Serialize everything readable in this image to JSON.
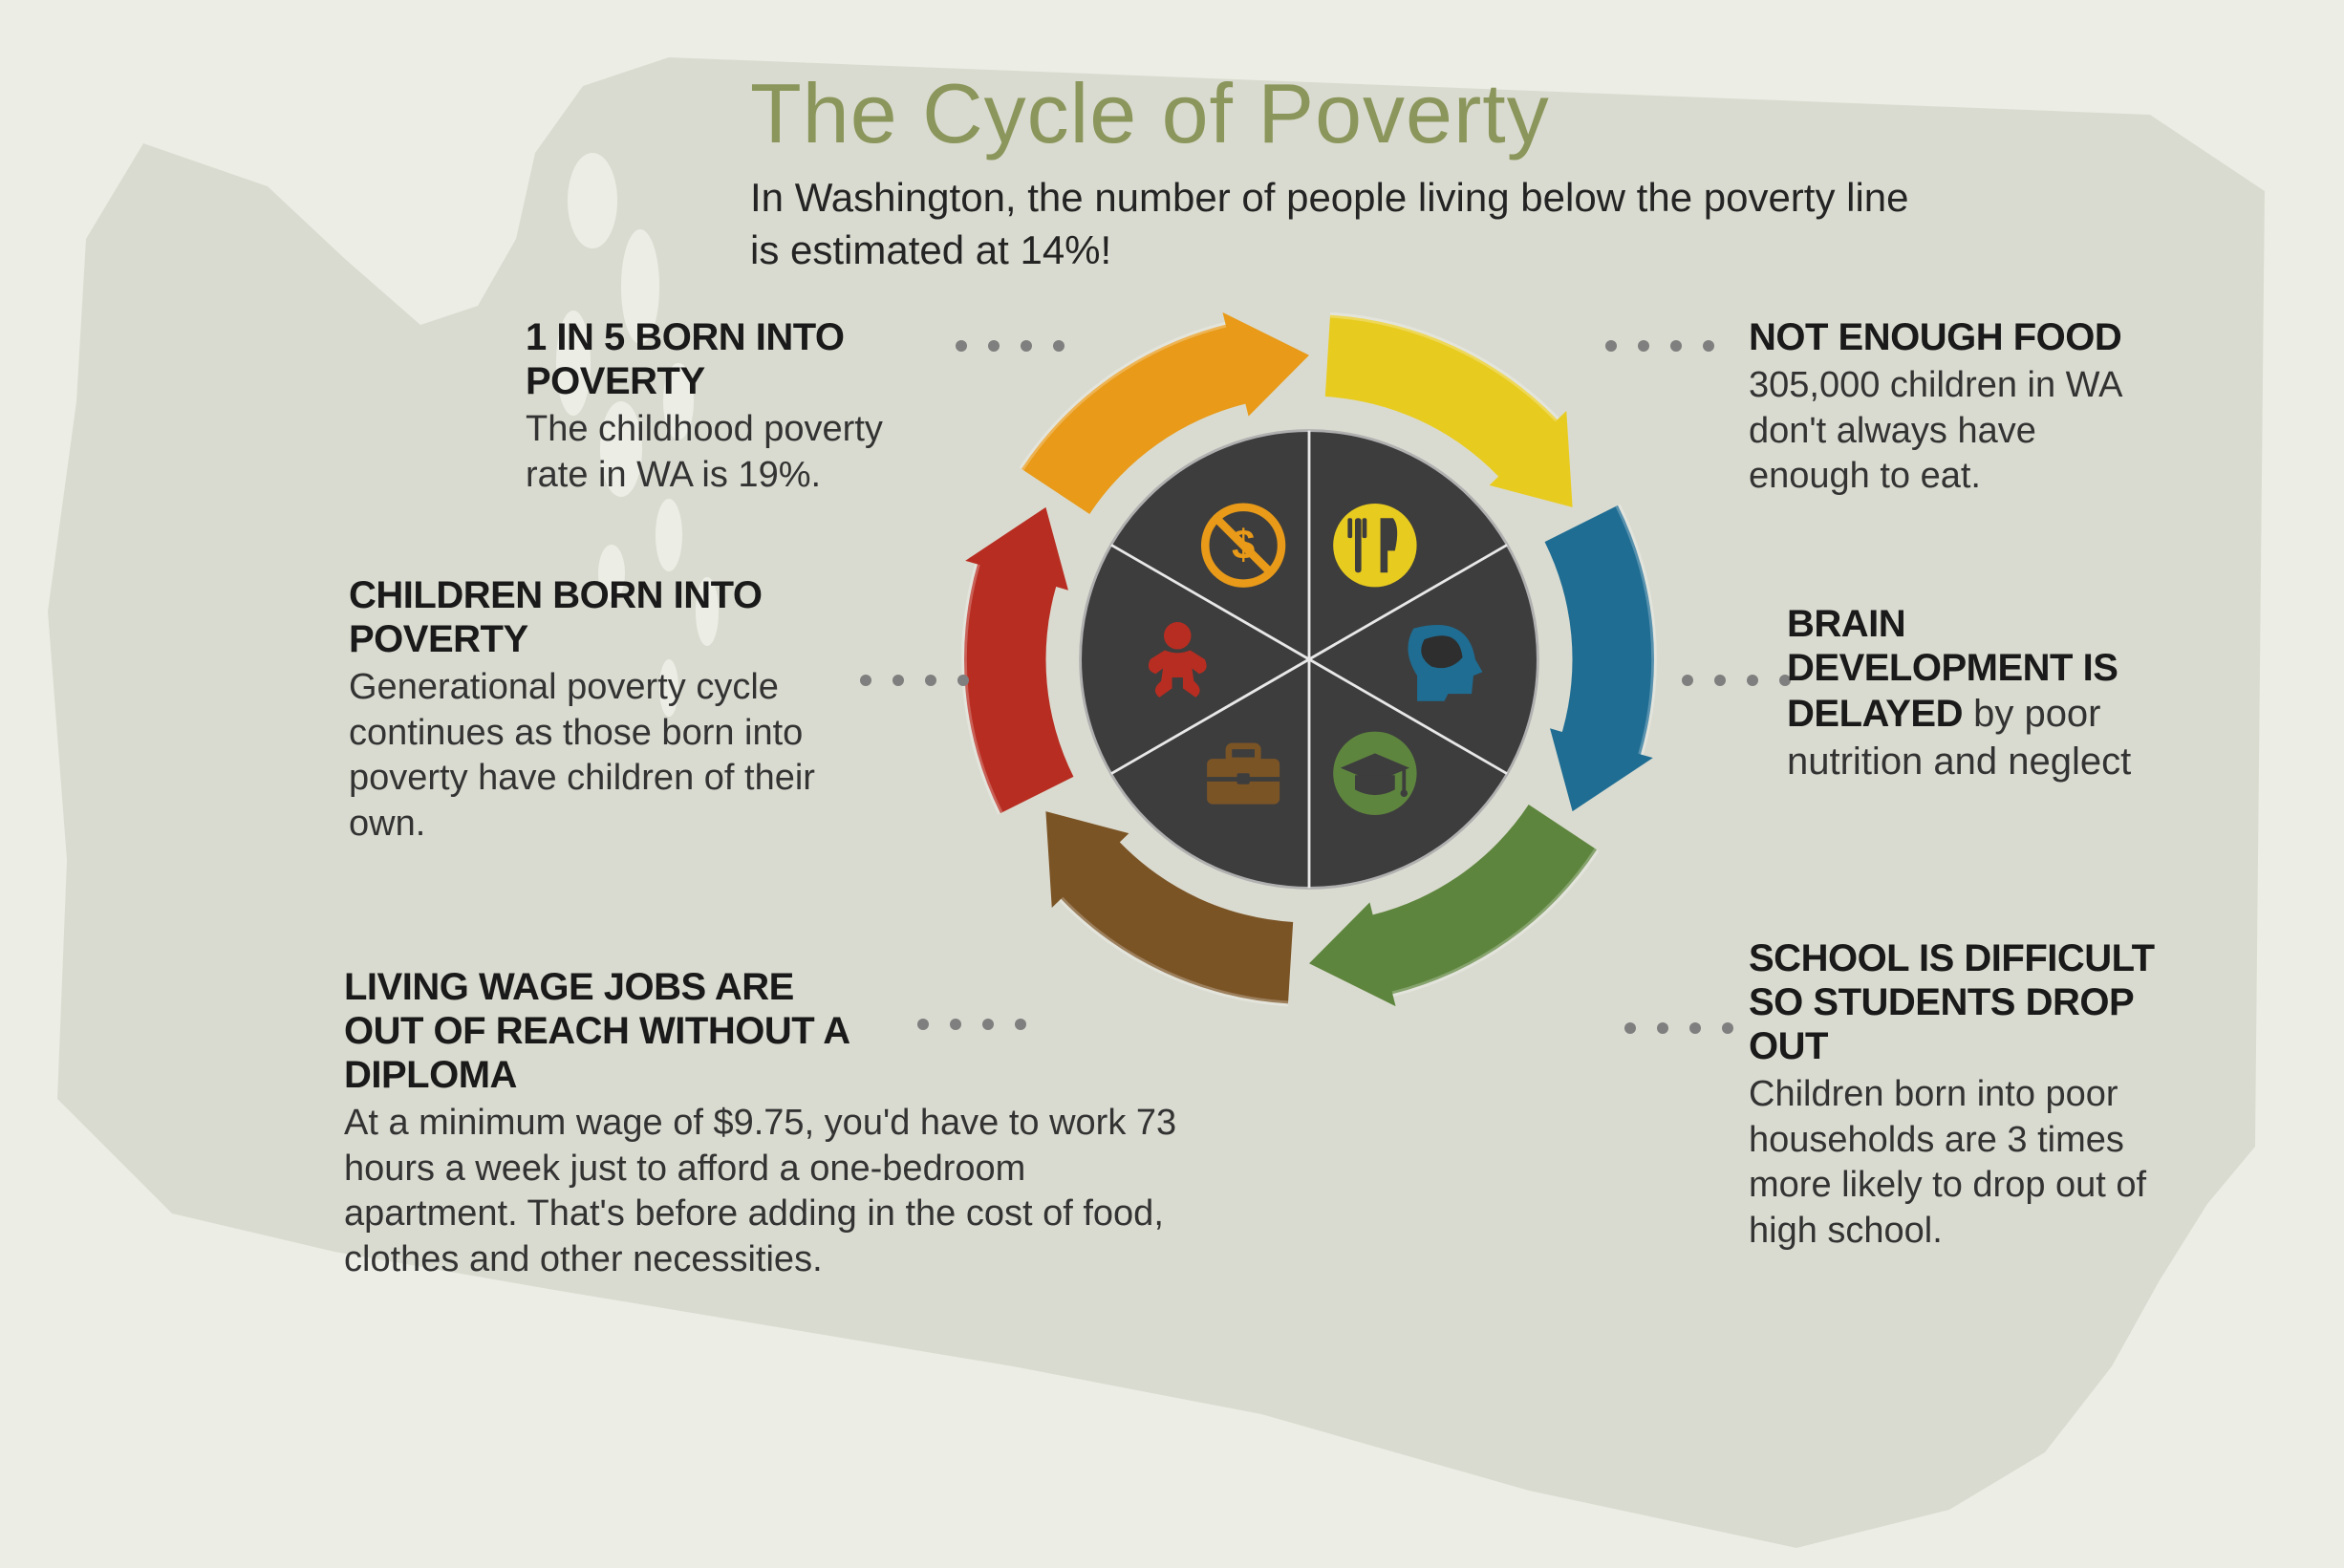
{
  "title": {
    "text": "The Cycle of Poverty",
    "color": "#8a965b"
  },
  "subtitle": "In Washington, the number of people living below the poverty line is estimated at 14%!",
  "background_color": "#eceee6",
  "map_color": "#dadbd0",
  "text_color": "#1a1a1a",
  "dot_color": "#7f7f7f",
  "wheel": {
    "type": "cycle-diagram",
    "segments": 6,
    "inner_fill": "#3d3d3d",
    "inner_stroke": "#b0b0b0",
    "inner_radius_ratio": 0.64,
    "gap_deg": 7,
    "arrow_colors": [
      "#e8cb1f",
      "#1f6d93",
      "#5e853e",
      "#7b5426",
      "#b82d21",
      "#e89a18"
    ],
    "icon_names": [
      "fork-knife-icon",
      "brain-head-icon",
      "grad-cap-icon",
      "briefcase-icon",
      "baby-icon",
      "no-money-icon"
    ],
    "icon_colors": [
      "#e8cb1f",
      "#1f6d93",
      "#5e853e",
      "#7b5426",
      "#b82d21",
      "#e89a18"
    ]
  },
  "callouts": {
    "born": {
      "heading": "1 IN 5 BORN INTO POVERTY",
      "body": "The childhood poverty rate in WA is 19%."
    },
    "children": {
      "heading": "CHILDREN BORN INTO POVERTY",
      "body": "Generational poverty cycle continues as those born into poverty have children of their own."
    },
    "wage": {
      "heading": "LIVING WAGE JOBS ARE OUT OF REACH WITHOUT A DIPLOMA",
      "body": "At a minimum wage of $9.75, you'd have to work 73 hours a week just to afford a one-bedroom apartment. That's before adding in the cost of food, clothes and other necessities."
    },
    "food": {
      "heading": "NOT ENOUGH FOOD",
      "body": "305,000 children in WA don't always have enough to eat."
    },
    "brain": {
      "heading": "BRAIN DEVELOPMENT IS DELAYED",
      "body": " by poor nutrition and neglect"
    },
    "school": {
      "heading": "SCHOOL IS DIFFICULT SO STUDENTS DROP OUT",
      "body": "Children born into poor households are 3 times more likely to drop out of high school."
    }
  }
}
